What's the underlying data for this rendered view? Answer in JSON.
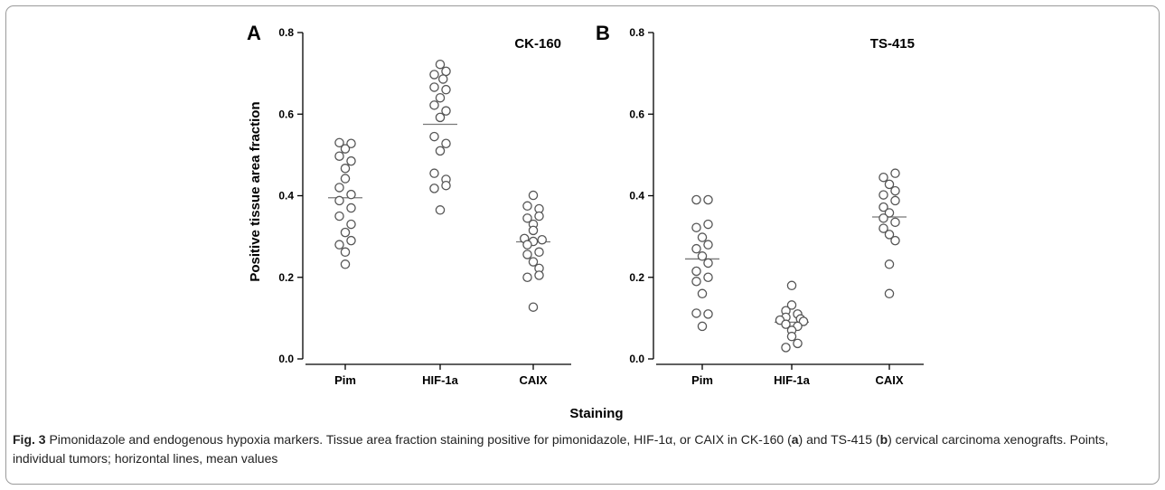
{
  "figure": {
    "ylabel": "Positive tissue area fraction",
    "xlabel": "Staining"
  },
  "caption": {
    "fig_label": "Fig. 3",
    "text_1": " Pimonidazole and endogenous hypoxia markers. Tissue area fraction staining positive for pimonidazole, HIF-1α, or CAIX in CK-160 (",
    "a": "a",
    "text_2": ") and TS-415 (",
    "b": "b",
    "text_3": ") cervical carcinoma xenografts. Points, individual tumors; horizontal lines, mean values"
  },
  "chart_data": [
    {
      "type": "scatter",
      "panel_letter": "A",
      "title": "CK-160",
      "ylabel": "Positive tissue area fraction",
      "xlabel": "Staining",
      "ylim": [
        0,
        0.8
      ],
      "yticks": [
        "0.0",
        "0.2",
        "0.4",
        "0.6",
        "0.8"
      ],
      "categories": [
        "Pim",
        "HIF-1a",
        "CAIX"
      ],
      "series": [
        {
          "category": "Pim",
          "mean": 0.395,
          "points": [
            {
              "y": 0.53,
              "dx": -1
            },
            {
              "y": 0.528,
              "dx": 1
            },
            {
              "y": 0.515,
              "dx": 0
            },
            {
              "y": 0.497,
              "dx": -1
            },
            {
              "y": 0.485,
              "dx": 1
            },
            {
              "y": 0.467,
              "dx": 0
            },
            {
              "y": 0.442,
              "dx": 0
            },
            {
              "y": 0.42,
              "dx": -1
            },
            {
              "y": 0.403,
              "dx": 1
            },
            {
              "y": 0.388,
              "dx": -1
            },
            {
              "y": 0.37,
              "dx": 1
            },
            {
              "y": 0.35,
              "dx": -1
            },
            {
              "y": 0.33,
              "dx": 1
            },
            {
              "y": 0.31,
              "dx": 0
            },
            {
              "y": 0.29,
              "dx": 1
            },
            {
              "y": 0.28,
              "dx": -1
            },
            {
              "y": 0.262,
              "dx": 0
            },
            {
              "y": 0.232,
              "dx": 0
            }
          ]
        },
        {
          "category": "HIF-1a",
          "mean": 0.575,
          "points": [
            {
              "y": 0.722,
              "dx": 0
            },
            {
              "y": 0.705,
              "dx": 1
            },
            {
              "y": 0.697,
              "dx": -1
            },
            {
              "y": 0.686,
              "dx": 0.5
            },
            {
              "y": 0.666,
              "dx": -1
            },
            {
              "y": 0.66,
              "dx": 1
            },
            {
              "y": 0.64,
              "dx": 0
            },
            {
              "y": 0.622,
              "dx": -1
            },
            {
              "y": 0.608,
              "dx": 1
            },
            {
              "y": 0.592,
              "dx": 0
            },
            {
              "y": 0.545,
              "dx": -1
            },
            {
              "y": 0.528,
              "dx": 1
            },
            {
              "y": 0.51,
              "dx": 0
            },
            {
              "y": 0.455,
              "dx": -1
            },
            {
              "y": 0.44,
              "dx": 1
            },
            {
              "y": 0.425,
              "dx": 1
            },
            {
              "y": 0.418,
              "dx": -1
            },
            {
              "y": 0.365,
              "dx": 0
            }
          ]
        },
        {
          "category": "CAIX",
          "mean": 0.287,
          "points": [
            {
              "y": 0.401,
              "dx": 0
            },
            {
              "y": 0.375,
              "dx": -1
            },
            {
              "y": 0.368,
              "dx": 1
            },
            {
              "y": 0.35,
              "dx": 1
            },
            {
              "y": 0.345,
              "dx": -1
            },
            {
              "y": 0.33,
              "dx": 0
            },
            {
              "y": 0.315,
              "dx": 0
            },
            {
              "y": 0.295,
              "dx": -1.5
            },
            {
              "y": 0.292,
              "dx": 1.5
            },
            {
              "y": 0.288,
              "dx": 0
            },
            {
              "y": 0.28,
              "dx": -1
            },
            {
              "y": 0.262,
              "dx": 1
            },
            {
              "y": 0.256,
              "dx": -1
            },
            {
              "y": 0.238,
              "dx": 0
            },
            {
              "y": 0.222,
              "dx": 1
            },
            {
              "y": 0.205,
              "dx": 1
            },
            {
              "y": 0.2,
              "dx": -1
            },
            {
              "y": 0.127,
              "dx": 0
            }
          ]
        }
      ]
    },
    {
      "type": "scatter",
      "panel_letter": "B",
      "title": "TS-415",
      "ylim": [
        0,
        0.8
      ],
      "yticks": [
        "0.0",
        "0.2",
        "0.4",
        "0.6",
        "0.8"
      ],
      "categories": [
        "Pim",
        "HIF-1a",
        "CAIX"
      ],
      "series": [
        {
          "category": "Pim",
          "mean": 0.245,
          "points": [
            {
              "y": 0.39,
              "dx": -1
            },
            {
              "y": 0.39,
              "dx": 1
            },
            {
              "y": 0.33,
              "dx": 1
            },
            {
              "y": 0.322,
              "dx": -1
            },
            {
              "y": 0.298,
              "dx": 0
            },
            {
              "y": 0.28,
              "dx": 1
            },
            {
              "y": 0.27,
              "dx": -1
            },
            {
              "y": 0.252,
              "dx": 0
            },
            {
              "y": 0.235,
              "dx": 1
            },
            {
              "y": 0.215,
              "dx": -1
            },
            {
              "y": 0.2,
              "dx": 1
            },
            {
              "y": 0.19,
              "dx": -1
            },
            {
              "y": 0.16,
              "dx": 0
            },
            {
              "y": 0.112,
              "dx": -1
            },
            {
              "y": 0.11,
              "dx": 1
            },
            {
              "y": 0.08,
              "dx": 0
            }
          ]
        },
        {
          "category": "HIF-1a",
          "mean": 0.09,
          "points": [
            {
              "y": 0.18,
              "dx": 0
            },
            {
              "y": 0.132,
              "dx": 0
            },
            {
              "y": 0.118,
              "dx": -1
            },
            {
              "y": 0.11,
              "dx": 1
            },
            {
              "y": 0.102,
              "dx": -1
            },
            {
              "y": 0.098,
              "dx": 1.5
            },
            {
              "y": 0.095,
              "dx": -2
            },
            {
              "y": 0.092,
              "dx": 2
            },
            {
              "y": 0.085,
              "dx": -1
            },
            {
              "y": 0.08,
              "dx": 1
            },
            {
              "y": 0.07,
              "dx": 0
            },
            {
              "y": 0.055,
              "dx": 0
            },
            {
              "y": 0.038,
              "dx": 1
            },
            {
              "y": 0.028,
              "dx": -1
            }
          ]
        },
        {
          "category": "CAIX",
          "mean": 0.348,
          "points": [
            {
              "y": 0.455,
              "dx": 1
            },
            {
              "y": 0.445,
              "dx": -1
            },
            {
              "y": 0.428,
              "dx": 0
            },
            {
              "y": 0.412,
              "dx": 1
            },
            {
              "y": 0.402,
              "dx": -1
            },
            {
              "y": 0.388,
              "dx": 1
            },
            {
              "y": 0.372,
              "dx": -1
            },
            {
              "y": 0.358,
              "dx": 0
            },
            {
              "y": 0.345,
              "dx": -1
            },
            {
              "y": 0.335,
              "dx": 1
            },
            {
              "y": 0.32,
              "dx": -1
            },
            {
              "y": 0.305,
              "dx": 0
            },
            {
              "y": 0.29,
              "dx": 1
            },
            {
              "y": 0.232,
              "dx": 0
            },
            {
              "y": 0.16,
              "dx": 0
            }
          ]
        }
      ]
    }
  ]
}
